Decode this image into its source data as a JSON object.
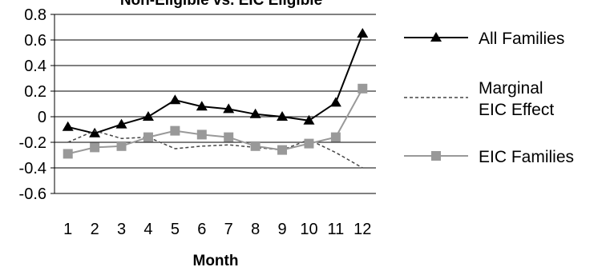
{
  "chart_data": {
    "type": "line",
    "title": "Non-Eligible vs. EIC Eligible",
    "xlabel": "Month",
    "ylabel": "",
    "categories": [
      "1",
      "2",
      "3",
      "4",
      "5",
      "6",
      "7",
      "8",
      "9",
      "10",
      "11",
      "12"
    ],
    "ylim": [
      -0.6,
      0.8
    ],
    "yticks": [
      "0.8",
      "0.6",
      "0.4",
      "0.2",
      "0",
      "-0.2",
      "-0.4",
      "-0.6"
    ],
    "grid": "horizontal",
    "legend_position": "right",
    "series": [
      {
        "name": "All Families",
        "values": [
          -0.08,
          -0.13,
          -0.06,
          0.0,
          0.13,
          0.08,
          0.06,
          0.02,
          0.0,
          -0.03,
          0.11,
          0.65
        ],
        "color": "#000000",
        "marker": "triangle",
        "line_style": "solid"
      },
      {
        "name": "Marginal EIC Effect",
        "name_lines": [
          "Marginal",
          "EIC Effect"
        ],
        "values": [
          -0.2,
          -0.11,
          -0.17,
          -0.16,
          -0.25,
          -0.23,
          -0.22,
          -0.24,
          -0.26,
          -0.18,
          -0.28,
          -0.4
        ],
        "color": "#444444",
        "marker": "none",
        "line_style": "dashed"
      },
      {
        "name": "EIC Families",
        "values": [
          -0.29,
          -0.24,
          -0.23,
          -0.16,
          -0.11,
          -0.14,
          -0.16,
          -0.23,
          -0.26,
          -0.21,
          -0.16,
          0.22
        ],
        "color": "#999999",
        "marker": "square",
        "line_style": "solid"
      }
    ]
  }
}
